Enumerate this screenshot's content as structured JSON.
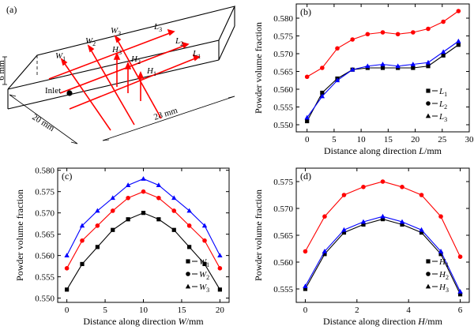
{
  "diagram": {
    "panel_label": "(a)",
    "inlet_label": "Inlet",
    "dim_height": "6 mm",
    "dim_width": "20 mm",
    "dim_length": "28 mm",
    "lines": [
      {
        "name": "W",
        "sub": "1"
      },
      {
        "name": "W",
        "sub": "2"
      },
      {
        "name": "W",
        "sub": "3"
      },
      {
        "name": "L",
        "sub": "3"
      },
      {
        "name": "L",
        "sub": "2"
      },
      {
        "name": "L",
        "sub": "1"
      },
      {
        "name": "H",
        "sub": "3"
      },
      {
        "name": "H",
        "sub": "2"
      },
      {
        "name": "H",
        "sub": "1"
      }
    ],
    "colors": {
      "lines": "#ff0000",
      "box": "#000000"
    }
  },
  "chart_data": [
    {
      "panel": "(b)",
      "type": "line",
      "xlabel_prefix": "Distance along direction ",
      "xlabel_var": "L",
      "xlabel_unit": "/mm",
      "ylabel": "Powder volume fraction",
      "xlim": [
        -2,
        30
      ],
      "ylim": [
        0.548,
        0.584
      ],
      "xticks": [
        0,
        5,
        10,
        15,
        20,
        25,
        30
      ],
      "yticks": [
        "0.550",
        "0.555",
        "0.560",
        "0.565",
        "0.570",
        "0.575",
        "0.580"
      ],
      "legend_position": "bottom-right",
      "x": [
        0,
        2.8,
        5.6,
        8.4,
        11.2,
        14,
        16.8,
        19.6,
        22.4,
        25.2,
        28
      ],
      "series": [
        {
          "name": "L",
          "sub": "1",
          "marker": "square",
          "color": "#000000",
          "values": [
            0.551,
            0.559,
            0.563,
            0.5655,
            0.566,
            0.566,
            0.566,
            0.566,
            0.5665,
            0.5695,
            0.5725
          ]
        },
        {
          "name": "L",
          "sub": "2",
          "marker": "circle",
          "color": "#ff0000",
          "values": [
            0.5635,
            0.566,
            0.5715,
            0.574,
            0.5755,
            0.576,
            0.5755,
            0.576,
            0.577,
            0.579,
            0.582
          ]
        },
        {
          "name": "L",
          "sub": "3",
          "marker": "triangle",
          "color": "#0000ff",
          "values": [
            0.552,
            0.558,
            0.5625,
            0.5655,
            0.5665,
            0.567,
            0.5665,
            0.567,
            0.5675,
            0.5705,
            0.5735
          ]
        }
      ]
    },
    {
      "panel": "(c)",
      "type": "line",
      "xlabel_prefix": "Distance along direction ",
      "xlabel_var": "W",
      "xlabel_unit": "/mm",
      "ylabel": "Powder volume fraction",
      "xlim": [
        -1.2,
        21.2
      ],
      "ylim": [
        0.549,
        0.5805
      ],
      "xticks": [
        0,
        5,
        10,
        15,
        20
      ],
      "yticks": [
        "0.550",
        "0.555",
        "0.560",
        "0.565",
        "0.570",
        "0.575",
        "0.580"
      ],
      "legend_position": "bottom-right",
      "x": [
        0,
        2,
        4,
        6,
        8,
        10,
        12,
        14,
        16,
        18,
        20
      ],
      "series": [
        {
          "name": "W",
          "sub": "1",
          "marker": "square",
          "color": "#000000",
          "values": [
            0.552,
            0.558,
            0.562,
            0.566,
            0.5685,
            0.57,
            0.5685,
            0.566,
            0.562,
            0.558,
            0.552
          ]
        },
        {
          "name": "W",
          "sub": "2",
          "marker": "circle",
          "color": "#ff0000",
          "values": [
            0.557,
            0.5635,
            0.567,
            0.5705,
            0.5735,
            0.575,
            0.5735,
            0.5705,
            0.567,
            0.5635,
            0.557
          ]
        },
        {
          "name": "W",
          "sub": "3",
          "marker": "triangle",
          "color": "#0000ff",
          "values": [
            0.56,
            0.567,
            0.5705,
            0.5735,
            0.5765,
            0.578,
            0.5765,
            0.5735,
            0.5705,
            0.567,
            0.56
          ]
        }
      ]
    },
    {
      "panel": "(d)",
      "type": "line",
      "xlabel_prefix": "Distance along direction ",
      "xlabel_var": "H",
      "xlabel_unit": "/mm",
      "ylabel": "Powder volume fraction",
      "xlim": [
        -0.35,
        6.35
      ],
      "ylim": [
        0.5525,
        0.5775
      ],
      "xticks": [
        0,
        2,
        4,
        6
      ],
      "yticks": [
        "0.555",
        "0.560",
        "0.565",
        "0.570",
        "0.575"
      ],
      "legend_position": "bottom-right",
      "x": [
        0,
        0.75,
        1.5,
        2.25,
        3,
        3.75,
        4.5,
        5.25,
        6
      ],
      "series": [
        {
          "name": "H",
          "sub": "1",
          "marker": "square",
          "color": "#000000",
          "values": [
            0.555,
            0.5615,
            0.5655,
            0.567,
            0.568,
            0.567,
            0.5655,
            0.5615,
            0.554
          ]
        },
        {
          "name": "H",
          "sub": "2",
          "marker": "circle",
          "color": "#ff0000",
          "values": [
            0.562,
            0.5685,
            0.5725,
            0.574,
            0.575,
            0.574,
            0.5725,
            0.5685,
            0.561
          ]
        },
        {
          "name": "H",
          "sub": "3",
          "marker": "triangle",
          "color": "#0000ff",
          "values": [
            0.5555,
            0.562,
            0.566,
            0.5675,
            0.5685,
            0.5675,
            0.566,
            0.562,
            0.5545
          ]
        }
      ]
    }
  ]
}
